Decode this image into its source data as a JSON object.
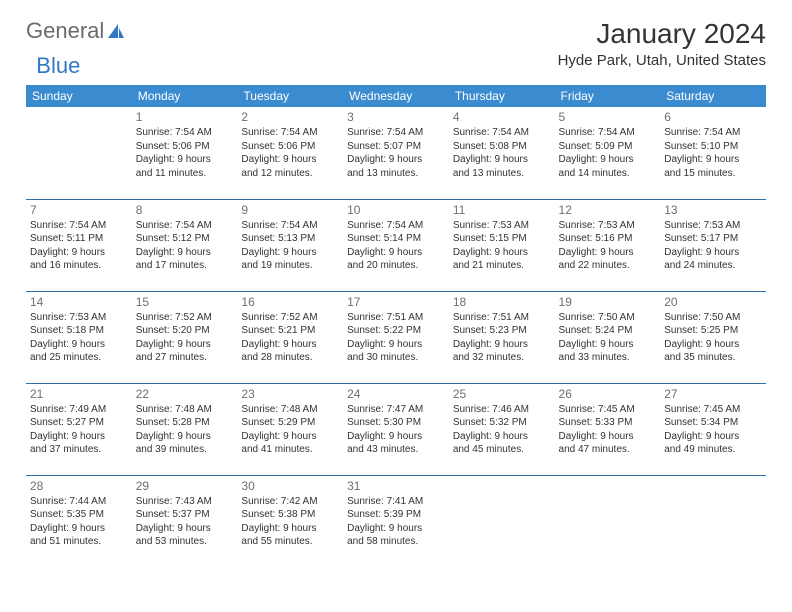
{
  "brand": {
    "part1": "General",
    "part2": "Blue"
  },
  "title": "January 2024",
  "location": "Hyde Park, Utah, United States",
  "colors": {
    "header_bg": "#3b8bd0",
    "header_text": "#ffffff",
    "row_border": "#2f6aa5",
    "daynum": "#6f6f6f",
    "body_text": "#333333",
    "logo_gray": "#6b6b6b",
    "logo_blue": "#2f79c2",
    "background": "#ffffff"
  },
  "typography": {
    "title_fontsize": 28,
    "location_fontsize": 15,
    "header_fontsize": 12,
    "daynum_fontsize": 12,
    "body_fontsize": 10
  },
  "headers": [
    "Sunday",
    "Monday",
    "Tuesday",
    "Wednesday",
    "Thursday",
    "Friday",
    "Saturday"
  ],
  "weeks": [
    [
      null,
      {
        "n": "1",
        "l1": "Sunrise: 7:54 AM",
        "l2": "Sunset: 5:06 PM",
        "l3": "Daylight: 9 hours",
        "l4": "and 11 minutes."
      },
      {
        "n": "2",
        "l1": "Sunrise: 7:54 AM",
        "l2": "Sunset: 5:06 PM",
        "l3": "Daylight: 9 hours",
        "l4": "and 12 minutes."
      },
      {
        "n": "3",
        "l1": "Sunrise: 7:54 AM",
        "l2": "Sunset: 5:07 PM",
        "l3": "Daylight: 9 hours",
        "l4": "and 13 minutes."
      },
      {
        "n": "4",
        "l1": "Sunrise: 7:54 AM",
        "l2": "Sunset: 5:08 PM",
        "l3": "Daylight: 9 hours",
        "l4": "and 13 minutes."
      },
      {
        "n": "5",
        "l1": "Sunrise: 7:54 AM",
        "l2": "Sunset: 5:09 PM",
        "l3": "Daylight: 9 hours",
        "l4": "and 14 minutes."
      },
      {
        "n": "6",
        "l1": "Sunrise: 7:54 AM",
        "l2": "Sunset: 5:10 PM",
        "l3": "Daylight: 9 hours",
        "l4": "and 15 minutes."
      }
    ],
    [
      {
        "n": "7",
        "l1": "Sunrise: 7:54 AM",
        "l2": "Sunset: 5:11 PM",
        "l3": "Daylight: 9 hours",
        "l4": "and 16 minutes."
      },
      {
        "n": "8",
        "l1": "Sunrise: 7:54 AM",
        "l2": "Sunset: 5:12 PM",
        "l3": "Daylight: 9 hours",
        "l4": "and 17 minutes."
      },
      {
        "n": "9",
        "l1": "Sunrise: 7:54 AM",
        "l2": "Sunset: 5:13 PM",
        "l3": "Daylight: 9 hours",
        "l4": "and 19 minutes."
      },
      {
        "n": "10",
        "l1": "Sunrise: 7:54 AM",
        "l2": "Sunset: 5:14 PM",
        "l3": "Daylight: 9 hours",
        "l4": "and 20 minutes."
      },
      {
        "n": "11",
        "l1": "Sunrise: 7:53 AM",
        "l2": "Sunset: 5:15 PM",
        "l3": "Daylight: 9 hours",
        "l4": "and 21 minutes."
      },
      {
        "n": "12",
        "l1": "Sunrise: 7:53 AM",
        "l2": "Sunset: 5:16 PM",
        "l3": "Daylight: 9 hours",
        "l4": "and 22 minutes."
      },
      {
        "n": "13",
        "l1": "Sunrise: 7:53 AM",
        "l2": "Sunset: 5:17 PM",
        "l3": "Daylight: 9 hours",
        "l4": "and 24 minutes."
      }
    ],
    [
      {
        "n": "14",
        "l1": "Sunrise: 7:53 AM",
        "l2": "Sunset: 5:18 PM",
        "l3": "Daylight: 9 hours",
        "l4": "and 25 minutes."
      },
      {
        "n": "15",
        "l1": "Sunrise: 7:52 AM",
        "l2": "Sunset: 5:20 PM",
        "l3": "Daylight: 9 hours",
        "l4": "and 27 minutes."
      },
      {
        "n": "16",
        "l1": "Sunrise: 7:52 AM",
        "l2": "Sunset: 5:21 PM",
        "l3": "Daylight: 9 hours",
        "l4": "and 28 minutes."
      },
      {
        "n": "17",
        "l1": "Sunrise: 7:51 AM",
        "l2": "Sunset: 5:22 PM",
        "l3": "Daylight: 9 hours",
        "l4": "and 30 minutes."
      },
      {
        "n": "18",
        "l1": "Sunrise: 7:51 AM",
        "l2": "Sunset: 5:23 PM",
        "l3": "Daylight: 9 hours",
        "l4": "and 32 minutes."
      },
      {
        "n": "19",
        "l1": "Sunrise: 7:50 AM",
        "l2": "Sunset: 5:24 PM",
        "l3": "Daylight: 9 hours",
        "l4": "and 33 minutes."
      },
      {
        "n": "20",
        "l1": "Sunrise: 7:50 AM",
        "l2": "Sunset: 5:25 PM",
        "l3": "Daylight: 9 hours",
        "l4": "and 35 minutes."
      }
    ],
    [
      {
        "n": "21",
        "l1": "Sunrise: 7:49 AM",
        "l2": "Sunset: 5:27 PM",
        "l3": "Daylight: 9 hours",
        "l4": "and 37 minutes."
      },
      {
        "n": "22",
        "l1": "Sunrise: 7:48 AM",
        "l2": "Sunset: 5:28 PM",
        "l3": "Daylight: 9 hours",
        "l4": "and 39 minutes."
      },
      {
        "n": "23",
        "l1": "Sunrise: 7:48 AM",
        "l2": "Sunset: 5:29 PM",
        "l3": "Daylight: 9 hours",
        "l4": "and 41 minutes."
      },
      {
        "n": "24",
        "l1": "Sunrise: 7:47 AM",
        "l2": "Sunset: 5:30 PM",
        "l3": "Daylight: 9 hours",
        "l4": "and 43 minutes."
      },
      {
        "n": "25",
        "l1": "Sunrise: 7:46 AM",
        "l2": "Sunset: 5:32 PM",
        "l3": "Daylight: 9 hours",
        "l4": "and 45 minutes."
      },
      {
        "n": "26",
        "l1": "Sunrise: 7:45 AM",
        "l2": "Sunset: 5:33 PM",
        "l3": "Daylight: 9 hours",
        "l4": "and 47 minutes."
      },
      {
        "n": "27",
        "l1": "Sunrise: 7:45 AM",
        "l2": "Sunset: 5:34 PM",
        "l3": "Daylight: 9 hours",
        "l4": "and 49 minutes."
      }
    ],
    [
      {
        "n": "28",
        "l1": "Sunrise: 7:44 AM",
        "l2": "Sunset: 5:35 PM",
        "l3": "Daylight: 9 hours",
        "l4": "and 51 minutes."
      },
      {
        "n": "29",
        "l1": "Sunrise: 7:43 AM",
        "l2": "Sunset: 5:37 PM",
        "l3": "Daylight: 9 hours",
        "l4": "and 53 minutes."
      },
      {
        "n": "30",
        "l1": "Sunrise: 7:42 AM",
        "l2": "Sunset: 5:38 PM",
        "l3": "Daylight: 9 hours",
        "l4": "and 55 minutes."
      },
      {
        "n": "31",
        "l1": "Sunrise: 7:41 AM",
        "l2": "Sunset: 5:39 PM",
        "l3": "Daylight: 9 hours",
        "l4": "and 58 minutes."
      },
      null,
      null,
      null
    ]
  ]
}
